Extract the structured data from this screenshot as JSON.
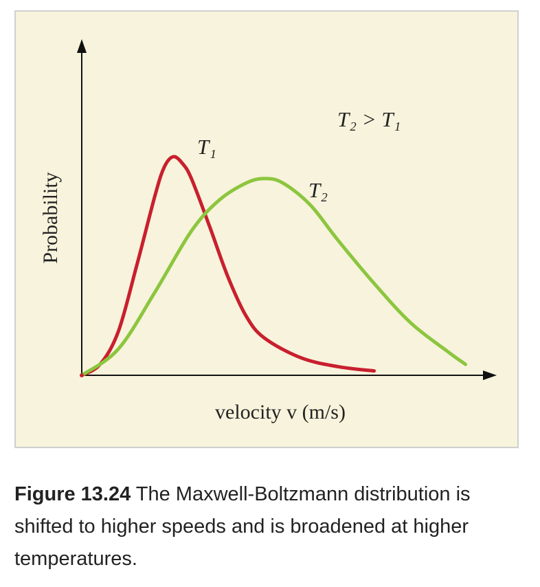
{
  "chart_data": {
    "type": "line",
    "xlabel": "velocity v (m/s)",
    "ylabel": "Probability",
    "annotation": "T₂ > T₁",
    "series": [
      {
        "name": "T₁",
        "color": "#c8202e",
        "points": [
          [
            0,
            0
          ],
          [
            2,
            0.05
          ],
          [
            4,
            0.2
          ],
          [
            6,
            0.5
          ],
          [
            8,
            0.82
          ],
          [
            9,
            0.95
          ],
          [
            10,
            1.0
          ],
          [
            11,
            0.97
          ],
          [
            12,
            0.9
          ],
          [
            14,
            0.68
          ],
          [
            16,
            0.45
          ],
          [
            18,
            0.27
          ],
          [
            20,
            0.17
          ],
          [
            24,
            0.08
          ],
          [
            28,
            0.04
          ],
          [
            32,
            0.02
          ]
        ]
      },
      {
        "name": "T₂",
        "color": "#8cc63f",
        "points": [
          [
            0,
            0
          ],
          [
            4,
            0.12
          ],
          [
            8,
            0.38
          ],
          [
            12,
            0.66
          ],
          [
            15,
            0.8
          ],
          [
            18,
            0.88
          ],
          [
            20,
            0.9
          ],
          [
            22,
            0.88
          ],
          [
            25,
            0.78
          ],
          [
            28,
            0.62
          ],
          [
            32,
            0.42
          ],
          [
            36,
            0.24
          ],
          [
            40,
            0.11
          ],
          [
            42,
            0.05
          ]
        ]
      }
    ]
  },
  "caption": {
    "label": "Figure 13.24",
    "text": " The Maxwell-Boltzmann distribution is shifted to higher speeds and is broadened at higher temperatures."
  }
}
